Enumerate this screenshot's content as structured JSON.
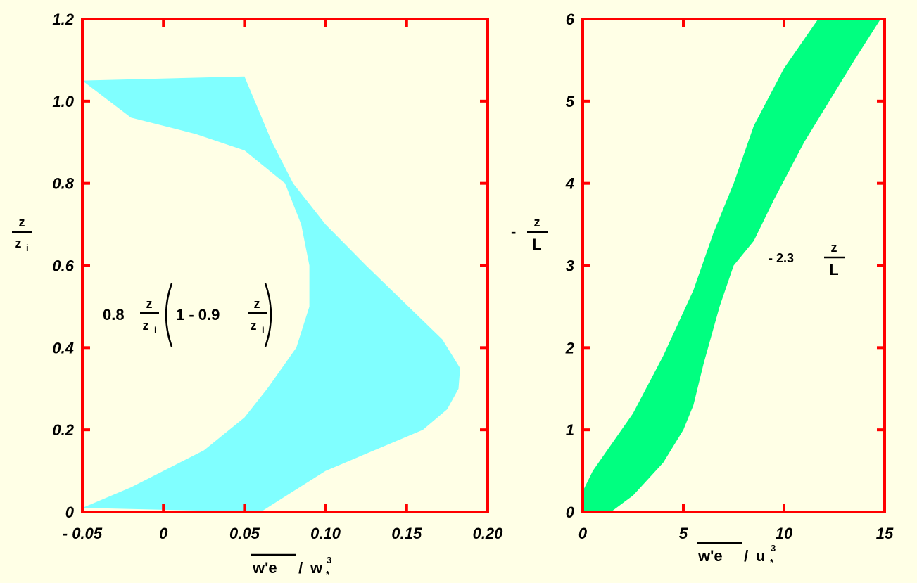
{
  "chart_data": [
    {
      "type": "area",
      "xlim": [
        -0.05,
        0.2
      ],
      "ylim": [
        0,
        1.2
      ],
      "x_ticks": [
        -0.05,
        0,
        0.05,
        0.1,
        0.15,
        0.2
      ],
      "x_tick_labels": [
        "- 0.05",
        "0",
        "0.05",
        "0.10",
        "0.15",
        "0.20"
      ],
      "y_ticks": [
        0,
        0.2,
        0.4,
        0.6,
        0.8,
        1.0,
        1.2
      ],
      "y_tick_labels": [
        "0",
        "0.2",
        "0.4",
        "0.6",
        "0.8",
        "1.0",
        "1.2"
      ],
      "xlabel": {
        "main": "w'e",
        "sep": " / ",
        "var": "w",
        "sup": "3",
        "sub": "*"
      },
      "ylabel": {
        "num": "z",
        "den": "z",
        "den_sub": "i"
      },
      "annotation": {
        "coef": "0.8",
        "frac_num": "z",
        "frac_den": "z",
        "frac_sub": "i",
        "inner": "1 - 0.9"
      },
      "fill_color": "#80ffff",
      "band": [
        {
          "name": "right-edge",
          "x": [
            0.06,
            0.08,
            0.1,
            0.13,
            0.16,
            0.175,
            0.182,
            0.183,
            0.172,
            0.125,
            0.1,
            0.08,
            0.067,
            0.05
          ],
          "y": [
            0,
            0.05,
            0.1,
            0.15,
            0.2,
            0.25,
            0.3,
            0.35,
            0.42,
            0.6,
            0.7,
            0.8,
            0.9,
            1.06
          ]
        },
        {
          "name": "left-edge",
          "x": [
            -0.05,
            -0.02,
            0.02,
            0.05,
            0.075,
            0.085,
            0.09,
            0.09,
            0.082,
            0.064,
            0.05,
            0.025,
            0.0,
            -0.02,
            -0.05
          ],
          "y": [
            1.05,
            0.96,
            0.92,
            0.88,
            0.8,
            0.7,
            0.6,
            0.5,
            0.4,
            0.3,
            0.23,
            0.15,
            0.1,
            0.06,
            0.01
          ]
        }
      ]
    },
    {
      "type": "area",
      "xlim": [
        0,
        15
      ],
      "ylim": [
        0,
        6
      ],
      "x_ticks": [
        0,
        5,
        10,
        15
      ],
      "x_tick_labels": [
        "0",
        "5",
        "10",
        "15"
      ],
      "y_ticks": [
        0,
        1,
        2,
        3,
        4,
        5,
        6
      ],
      "y_tick_labels": [
        "0",
        "1",
        "2",
        "3",
        "4",
        "5",
        "6"
      ],
      "xlabel": {
        "main": "w'e",
        "sep": " / ",
        "var": "u",
        "sup": "3",
        "sub": "*"
      },
      "ylabel": {
        "prefix": "-",
        "num": "z",
        "den": "L"
      },
      "annotation": {
        "coef": "- 2.3",
        "frac_num": "z",
        "frac_den": "L"
      },
      "fill_color": "#00ff80",
      "band": [
        {
          "name": "upper-edge",
          "x": [
            0,
            0.5,
            2.5,
            4.0,
            5.5,
            6.5,
            7.5,
            8.5,
            10.0,
            11.7
          ],
          "y": [
            0.25,
            0.5,
            1.2,
            1.9,
            2.7,
            3.4,
            4.0,
            4.7,
            5.4,
            6.0
          ]
        },
        {
          "name": "lower-edge",
          "x": [
            14.8,
            13.5,
            11.0,
            9.5,
            8.5,
            7.5,
            6.8,
            6.0,
            5.5,
            5.0,
            4.0,
            2.5,
            1.4,
            0
          ],
          "y": [
            6.0,
            5.5,
            4.5,
            3.8,
            3.3,
            3.0,
            2.5,
            1.8,
            1.3,
            1.0,
            0.6,
            0.2,
            0,
            0
          ]
        }
      ]
    }
  ]
}
